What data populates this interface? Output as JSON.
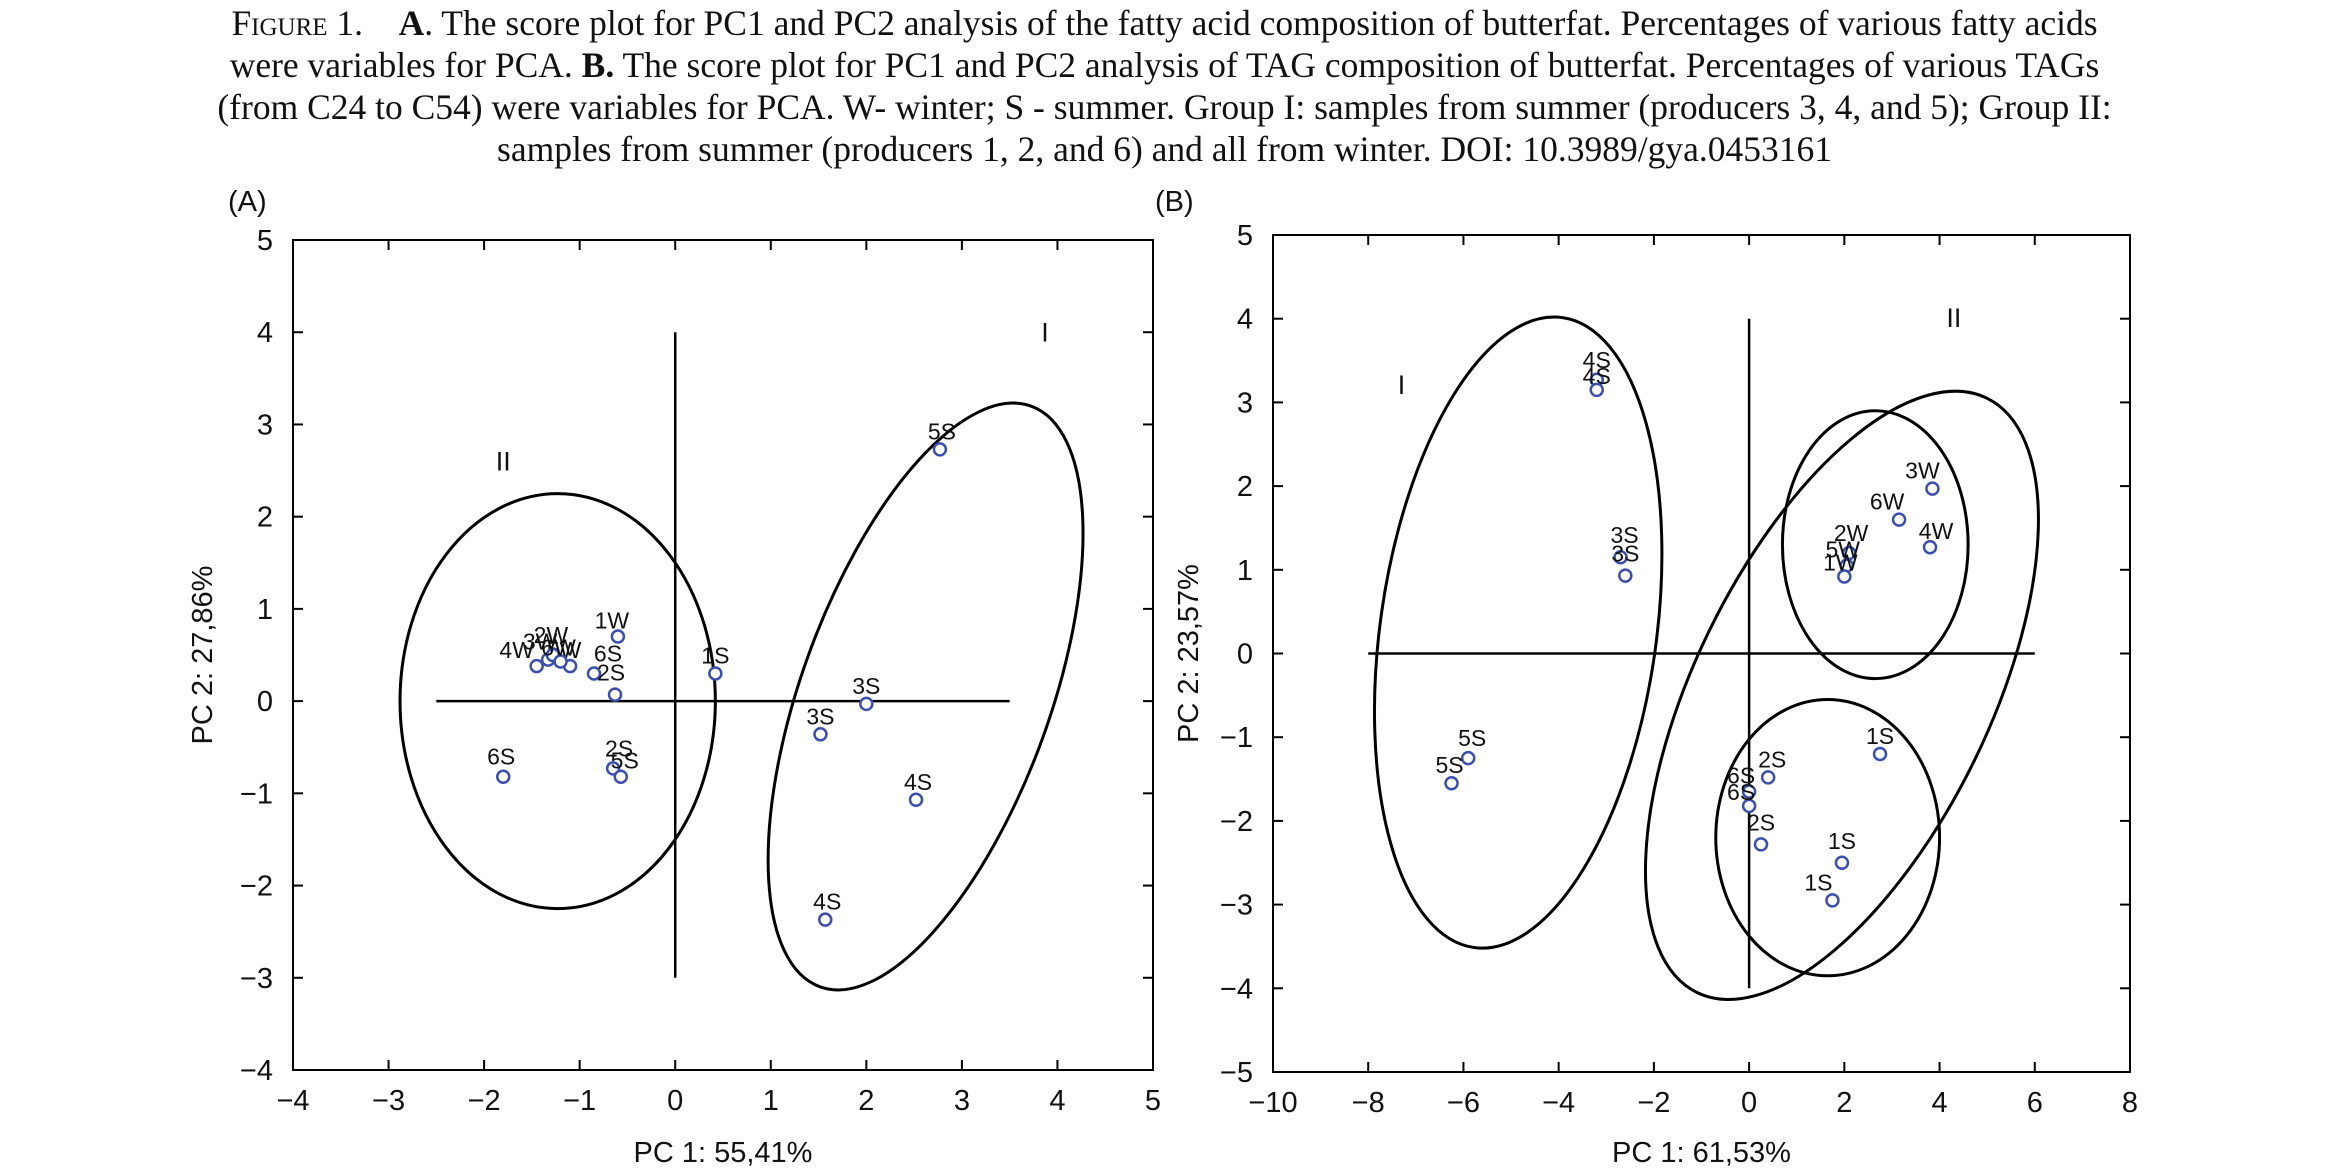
{
  "caption": {
    "line1_prefix": "Figure 1.",
    "line1_bold_a": "A",
    "line1_rest": ". The score plot for PC1 and PC2 analysis of the fatty acid composition of butterfat. Percentages of various fatty acids",
    "line2_text": "were variables for PCA.",
    "line2_bold_b": "B.",
    "line2_rest": "The score plot for PC1 and PC2 analysis of TAG composition of butterfat. Percentages of various TAGs",
    "line3": "(from C24 to C54) were variables for PCA. W- winter; S - summer. Group I: samples from summer (producers 3, 4, and 5); Group II:",
    "line4": "samples from summer (producers 1, 2, and 6) and all from winter. DOI: 10.3989/gya.0453161"
  },
  "colors": {
    "marker": "#3b4fb0",
    "axes": "#000000"
  },
  "chart_data": [
    {
      "type": "scatter",
      "panel_label": "(A)",
      "xlabel": "PC 1: 55,41%",
      "ylabel": "PC 2: 27,86%",
      "xlim": [
        -4,
        5
      ],
      "ylim": [
        -4,
        5
      ],
      "xticks": [
        -4,
        -3,
        -2,
        -1,
        0,
        1,
        2,
        3,
        4,
        5
      ],
      "yticks": [
        -4,
        -3,
        -2,
        -1,
        0,
        1,
        2,
        3,
        4,
        5
      ],
      "tick_labels_x": [
        "−4",
        "−3",
        "−2",
        "−1",
        "0",
        "1",
        "2",
        "3",
        "4",
        "5"
      ],
      "tick_labels_y": [
        "−4",
        "−3",
        "−2",
        "−1",
        "0",
        "1",
        "2",
        "3",
        "4",
        "5"
      ],
      "zero_lines": {
        "h": [
          -2.5,
          3.5
        ],
        "v": [
          -3,
          4
        ]
      },
      "points": [
        {
          "label": "1W",
          "x": -0.6,
          "y": 0.7
        },
        {
          "label": "5W",
          "x": -1.1,
          "y": 0.38
        },
        {
          "label": "6S",
          "x": -0.85,
          "y": 0.3
        },
        {
          "label": "2S",
          "x": -0.63,
          "y": 0.07
        },
        {
          "label": "4W",
          "x": -1.45,
          "y": 0.38
        },
        {
          "label": "3W",
          "x": -1.33,
          "y": 0.45
        },
        {
          "label": "2W",
          "x": -1.28,
          "y": 0.5
        },
        {
          "label": "6W",
          "x": -1.2,
          "y": 0.43
        },
        {
          "label": "1S",
          "x": 0.42,
          "y": 0.3
        },
        {
          "label": "6S",
          "x": -1.8,
          "y": -0.82
        },
        {
          "label": "2S",
          "x": -0.65,
          "y": -0.73
        },
        {
          "label": "5S",
          "x": -0.57,
          "y": -0.82
        },
        {
          "label": "3S",
          "x": 2.0,
          "y": -0.03
        },
        {
          "label": "3S",
          "x": 1.52,
          "y": -0.36
        },
        {
          "label": "4S",
          "x": 2.52,
          "y": -1.07
        },
        {
          "label": "4S",
          "x": 1.57,
          "y": -2.37
        },
        {
          "label": "5S",
          "x": 2.77,
          "y": 2.73
        }
      ],
      "ellipses": [
        {
          "cx": -1.23,
          "cy": 0.0,
          "rx": 1.65,
          "ry": 2.25,
          "angle": 0
        },
        {
          "cx": 2.62,
          "cy": 0.05,
          "rx": 1.3,
          "ry": 3.35,
          "angle": 20
        }
      ],
      "group_labels": [
        {
          "text": "II",
          "x": -1.8,
          "y": 2.5
        },
        {
          "text": "I",
          "x": 3.87,
          "y": 3.9
        }
      ]
    },
    {
      "type": "scatter",
      "panel_label": "(B)",
      "xlabel": "PC 1: 61,53%",
      "ylabel": "PC 2: 23,57%",
      "xlim": [
        -10,
        8
      ],
      "ylim": [
        -5,
        5
      ],
      "xticks": [
        -10,
        -8,
        -6,
        -4,
        -2,
        0,
        2,
        4,
        6,
        8
      ],
      "yticks": [
        -5,
        -4,
        -3,
        -2,
        -1,
        0,
        1,
        2,
        3,
        4,
        5
      ],
      "tick_labels_x": [
        "−10",
        "−8",
        "−6",
        "−4",
        "−2",
        "0",
        "2",
        "4",
        "6",
        "8"
      ],
      "tick_labels_y": [
        "−5",
        "−4",
        "−3",
        "−2",
        "−1",
        "0",
        "1",
        "2",
        "3",
        "4",
        "5"
      ],
      "zero_lines": {
        "h": [
          -8,
          6
        ],
        "v": [
          -4,
          4
        ]
      },
      "points": [
        {
          "label": "4S",
          "x": -3.2,
          "y": 3.27
        },
        {
          "label": "4S",
          "x": -3.2,
          "y": 3.15
        },
        {
          "label": "3S",
          "x": -2.7,
          "y": 1.15
        },
        {
          "label": "3S",
          "x": -2.6,
          "y": 0.93
        },
        {
          "label": "5S",
          "x": -5.9,
          "y": -1.25
        },
        {
          "label": "5S",
          "x": -6.25,
          "y": -1.55
        },
        {
          "label": "3W",
          "x": 3.85,
          "y": 1.97
        },
        {
          "label": "6W",
          "x": 3.15,
          "y": 1.6
        },
        {
          "label": "4W",
          "x": 3.8,
          "y": 1.27
        },
        {
          "label": "2W",
          "x": 2.1,
          "y": 1.2
        },
        {
          "label": "5W",
          "x": 2.05,
          "y": 1.05
        },
        {
          "label": "1W",
          "x": 2.0,
          "y": 0.92
        },
        {
          "label": "1S",
          "x": 2.75,
          "y": -1.2
        },
        {
          "label": "2S",
          "x": 0.4,
          "y": -1.48
        },
        {
          "label": "6S",
          "x": 0.0,
          "y": -1.65
        },
        {
          "label": "6S",
          "x": 0.0,
          "y": -1.82
        },
        {
          "label": "2S",
          "x": 0.25,
          "y": -2.28
        },
        {
          "label": "1S",
          "x": 1.95,
          "y": -2.5
        },
        {
          "label": "1S",
          "x": 1.75,
          "y": -2.95
        }
      ],
      "ellipses": [
        {
          "cx": -4.85,
          "cy": 0.25,
          "rx": 2.9,
          "ry": 3.8,
          "angle": 8
        },
        {
          "cx": 1.95,
          "cy": -0.5,
          "rx": 3.1,
          "ry": 3.95,
          "angle": 26
        },
        {
          "cx": 2.65,
          "cy": 1.3,
          "rx": 1.95,
          "ry": 1.6,
          "angle": 0
        },
        {
          "cx": 1.65,
          "cy": -2.2,
          "rx": 2.35,
          "ry": 1.65,
          "angle": 0
        }
      ],
      "group_labels": [
        {
          "text": "I",
          "x": -7.3,
          "y": 3.1
        },
        {
          "text": "II",
          "x": 4.3,
          "y": 3.9
        }
      ]
    }
  ]
}
